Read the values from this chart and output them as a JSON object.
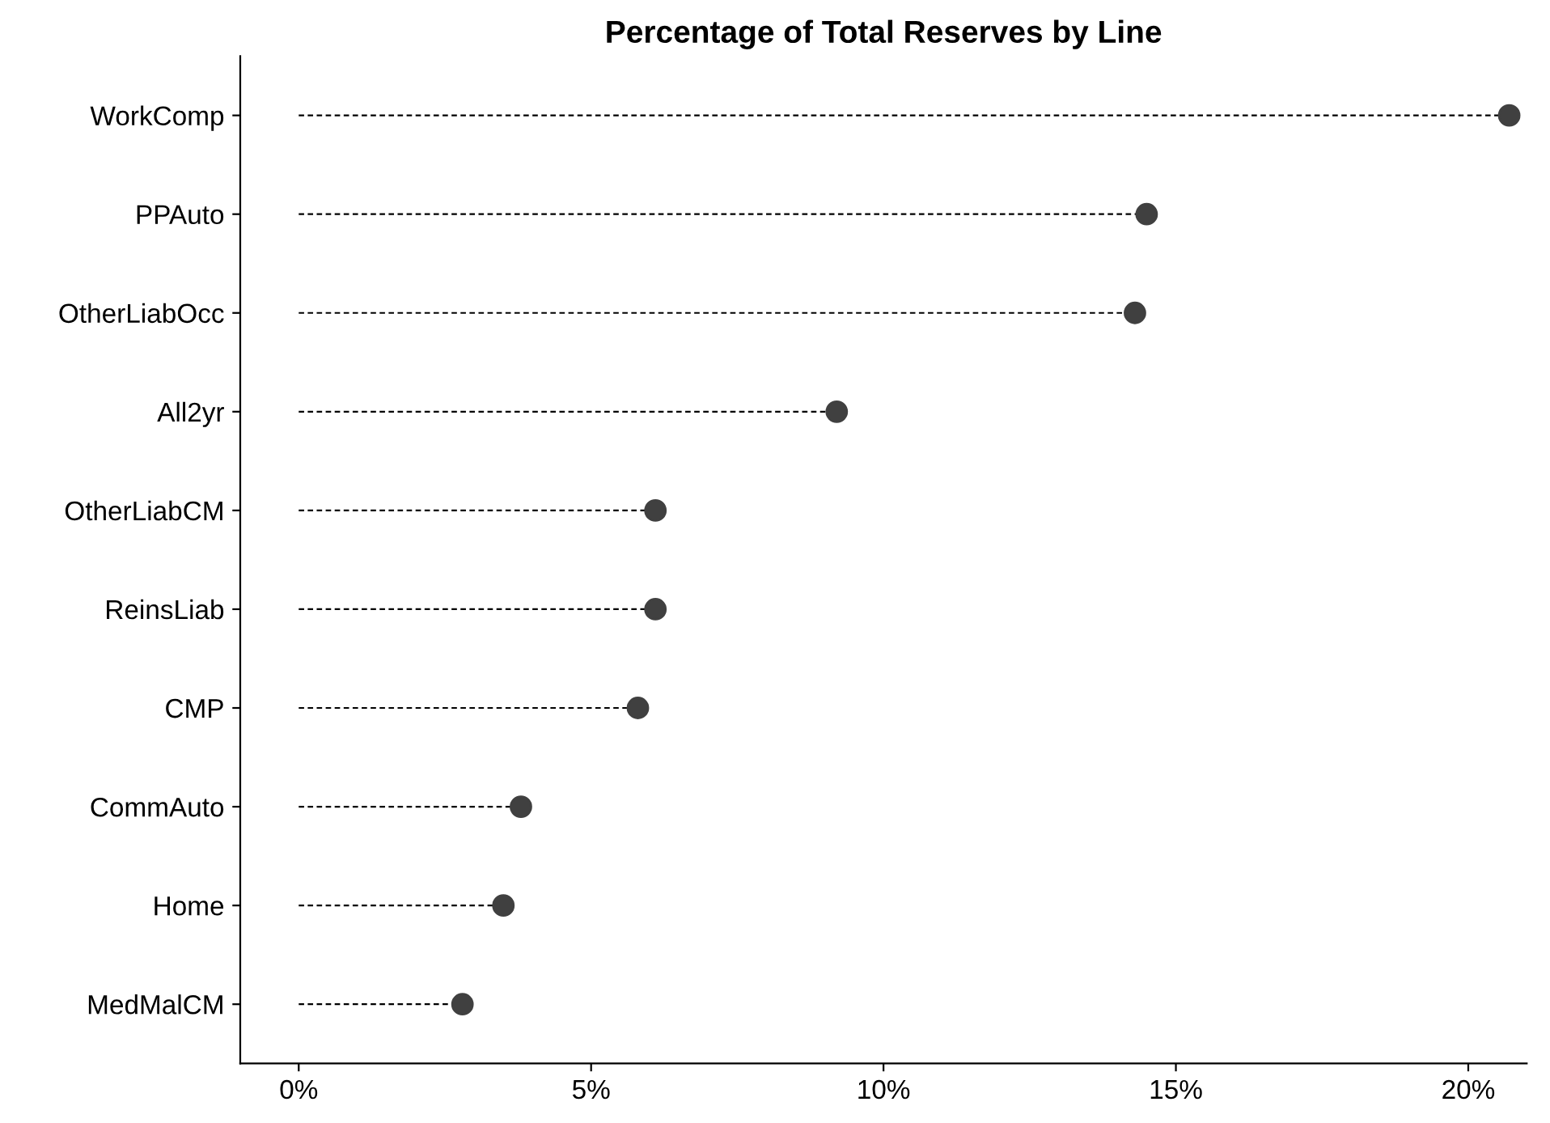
{
  "chart_data": {
    "type": "lollipop",
    "orientation": "horizontal",
    "title": "Percentage of Total Reserves by Line",
    "categories": [
      "WorkComp",
      "PPAuto",
      "OtherLiabOcc",
      "All2yr",
      "OtherLiabCM",
      "ReinsLiab",
      "CMP",
      "CommAuto",
      "Home",
      "MedMalCM"
    ],
    "values": [
      20.7,
      14.5,
      14.3,
      9.2,
      6.1,
      6.1,
      5.8,
      3.8,
      3.5,
      2.8
    ],
    "color": "#404040",
    "marker": "circle",
    "line_style": "dashed",
    "xlim": [
      -1,
      21
    ],
    "xticks": [
      {
        "value": 0,
        "label": "0%"
      },
      {
        "value": 5,
        "label": "5%"
      },
      {
        "value": 10,
        "label": "10%"
      },
      {
        "value": 15,
        "label": "15%"
      },
      {
        "value": 20,
        "label": "20%"
      }
    ],
    "grid": false,
    "legend": false
  }
}
